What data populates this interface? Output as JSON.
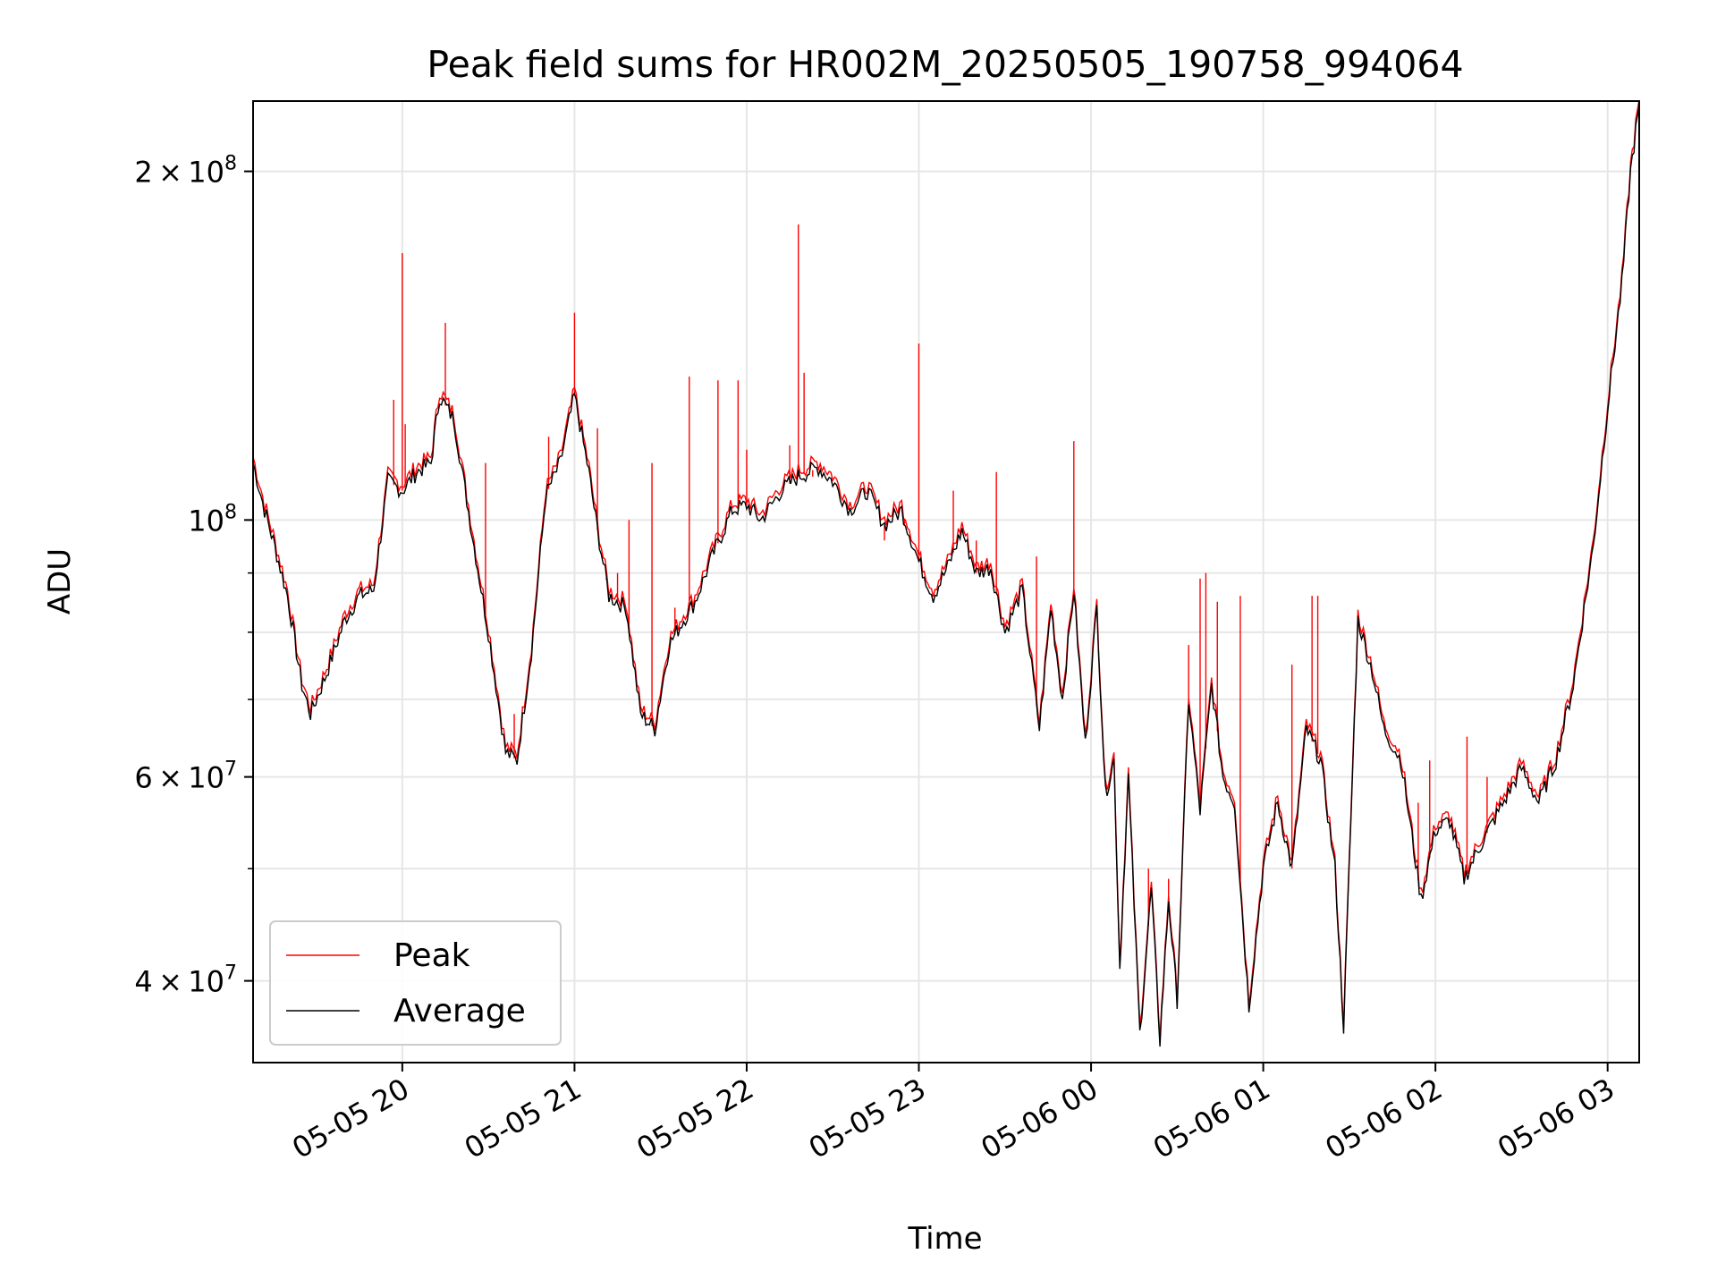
{
  "chart_data": {
    "type": "line",
    "title": "Peak field sums for HR002M_20250505_190758_994064",
    "xlabel": "Time",
    "ylabel": "ADU",
    "yscale": "log",
    "ylim": [
      34000000,
      230000000
    ],
    "xlim": [
      "2025-05-05 19:08",
      "2025-05-06 03:11"
    ],
    "grid": true,
    "legend": "lower-left",
    "x_tick_labels": [
      "05-05 20",
      "05-05 21",
      "05-05 22",
      "05-05 23",
      "05-06 00",
      "05-06 01",
      "05-06 02",
      "05-06 03"
    ],
    "y_tick_labels": [
      {
        "value": 200000000,
        "mantissa": "2",
        "exp": "8"
      },
      {
        "value": 100000000,
        "mantissa": "",
        "exp": "8"
      },
      {
        "value": 60000000,
        "mantissa": "6",
        "exp": "7"
      },
      {
        "value": 40000000,
        "mantissa": "4",
        "exp": "7"
      }
    ],
    "colors": {
      "Peak": "#ff0000",
      "Average": "#000000"
    },
    "series": [
      {
        "name": "Average",
        "points": [
          [
            "2025-05-05 19:08",
            112000000
          ],
          [
            "2025-05-05 19:12",
            102000000
          ],
          [
            "2025-05-05 19:15",
            96000000
          ],
          [
            "2025-05-05 19:20",
            86000000
          ],
          [
            "2025-05-05 19:25",
            72000000
          ],
          [
            "2025-05-05 19:28",
            68000000
          ],
          [
            "2025-05-05 19:33",
            73000000
          ],
          [
            "2025-05-05 19:40",
            82000000
          ],
          [
            "2025-05-05 19:45",
            86000000
          ],
          [
            "2025-05-05 19:50",
            87000000
          ],
          [
            "2025-05-05 19:55",
            108000000
          ],
          [
            "2025-05-05 20:00",
            106000000
          ],
          [
            "2025-05-05 20:05",
            110000000
          ],
          [
            "2025-05-05 20:10",
            112000000
          ],
          [
            "2025-05-05 20:13",
            128000000
          ],
          [
            "2025-05-05 20:18",
            122000000
          ],
          [
            "2025-05-05 20:25",
            95000000
          ],
          [
            "2025-05-05 20:30",
            80000000
          ],
          [
            "2025-05-05 20:36",
            63000000
          ],
          [
            "2025-05-05 20:40",
            62000000
          ],
          [
            "2025-05-05 20:45",
            77000000
          ],
          [
            "2025-05-05 20:50",
            105000000
          ],
          [
            "2025-05-05 20:55",
            112000000
          ],
          [
            "2025-05-05 21:00",
            128000000
          ],
          [
            "2025-05-05 21:05",
            110000000
          ],
          [
            "2025-05-05 21:08",
            98000000
          ],
          [
            "2025-05-05 21:12",
            86000000
          ],
          [
            "2025-05-05 21:18",
            84000000
          ],
          [
            "2025-05-05 21:23",
            68000000
          ],
          [
            "2025-05-05 21:28",
            66000000
          ],
          [
            "2025-05-05 21:33",
            78000000
          ],
          [
            "2025-05-05 21:38",
            82000000
          ],
          [
            "2025-05-05 21:42",
            85000000
          ],
          [
            "2025-05-05 21:48",
            93000000
          ],
          [
            "2025-05-05 21:55",
            102000000
          ],
          [
            "2025-05-05 22:00",
            103000000
          ],
          [
            "2025-05-05 22:05",
            100000000
          ],
          [
            "2025-05-05 22:12",
            106000000
          ],
          [
            "2025-05-05 22:18",
            109000000
          ],
          [
            "2025-05-05 22:25",
            111000000
          ],
          [
            "2025-05-05 22:30",
            108000000
          ],
          [
            "2025-05-05 22:36",
            102000000
          ],
          [
            "2025-05-05 22:42",
            106000000
          ],
          [
            "2025-05-05 22:48",
            99000000
          ],
          [
            "2025-05-05 22:54",
            102000000
          ],
          [
            "2025-05-05 23:00",
            92000000
          ],
          [
            "2025-05-05 23:05",
            86000000
          ],
          [
            "2025-05-05 23:10",
            91000000
          ],
          [
            "2025-05-05 23:15",
            98000000
          ],
          [
            "2025-05-05 23:20",
            90000000
          ],
          [
            "2025-05-05 23:25",
            91000000
          ],
          [
            "2025-05-05 23:30",
            80000000
          ],
          [
            "2025-05-05 23:36",
            87000000
          ],
          [
            "2025-05-05 23:42",
            66000000
          ],
          [
            "2025-05-05 23:46",
            84000000
          ],
          [
            "2025-05-05 23:50",
            70000000
          ],
          [
            "2025-05-05 23:54",
            87000000
          ],
          [
            "2025-05-05 23:58",
            64000000
          ],
          [
            "2025-05-06 00:02",
            84000000
          ],
          [
            "2025-05-06 00:05",
            58000000
          ],
          [
            "2025-05-06 00:08",
            62000000
          ],
          [
            "2025-05-06 00:10",
            41000000
          ],
          [
            "2025-05-06 00:13",
            60000000
          ],
          [
            "2025-05-06 00:17",
            36000000
          ],
          [
            "2025-05-06 00:21",
            48000000
          ],
          [
            "2025-05-06 00:24",
            35500000
          ],
          [
            "2025-05-06 00:27",
            47000000
          ],
          [
            "2025-05-06 00:30",
            38500000
          ],
          [
            "2025-05-06 00:34",
            70000000
          ],
          [
            "2025-05-06 00:38",
            56000000
          ],
          [
            "2025-05-06 00:42",
            72000000
          ],
          [
            "2025-05-06 00:46",
            60000000
          ],
          [
            "2025-05-06 00:50",
            57000000
          ],
          [
            "2025-05-06 00:55",
            38000000
          ],
          [
            "2025-05-06 01:00",
            50000000
          ],
          [
            "2025-05-06 01:05",
            57000000
          ],
          [
            "2025-05-06 01:10",
            50000000
          ],
          [
            "2025-05-06 01:15",
            66000000
          ],
          [
            "2025-05-06 01:20",
            62000000
          ],
          [
            "2025-05-06 01:25",
            50000000
          ],
          [
            "2025-05-06 01:28",
            36500000
          ],
          [
            "2025-05-06 01:33",
            82000000
          ],
          [
            "2025-05-06 01:38",
            74000000
          ],
          [
            "2025-05-06 01:42",
            66000000
          ],
          [
            "2025-05-06 01:48",
            62000000
          ],
          [
            "2025-05-06 01:55",
            47000000
          ],
          [
            "2025-05-06 02:00",
            54000000
          ],
          [
            "2025-05-06 02:05",
            55000000
          ],
          [
            "2025-05-06 02:10",
            49000000
          ],
          [
            "2025-05-06 02:15",
            52000000
          ],
          [
            "2025-05-06 02:22",
            56000000
          ],
          [
            "2025-05-06 02:30",
            61000000
          ],
          [
            "2025-05-06 02:36",
            57000000
          ],
          [
            "2025-05-06 02:42",
            62000000
          ],
          [
            "2025-05-06 02:48",
            72000000
          ],
          [
            "2025-05-06 02:55",
            95000000
          ],
          [
            "2025-05-06 03:00",
            125000000
          ],
          [
            "2025-05-06 03:05",
            160000000
          ],
          [
            "2025-05-06 03:08",
            200000000
          ],
          [
            "2025-05-06 03:11",
            228000000
          ]
        ]
      },
      {
        "name": "Peak",
        "spikes": [
          [
            "2025-05-05 19:57",
            127000000
          ],
          [
            "2025-05-05 20:00",
            170000000
          ],
          [
            "2025-05-05 20:01",
            121000000
          ],
          [
            "2025-05-05 20:15",
            148000000
          ],
          [
            "2025-05-05 20:29",
            112000000
          ],
          [
            "2025-05-05 20:39",
            68000000
          ],
          [
            "2025-05-05 20:51",
            118000000
          ],
          [
            "2025-05-05 21:00",
            151000000
          ],
          [
            "2025-05-05 21:08",
            120000000
          ],
          [
            "2025-05-05 21:11",
            89000000
          ],
          [
            "2025-05-05 21:15",
            90000000
          ],
          [
            "2025-05-05 21:19",
            100000000
          ],
          [
            "2025-05-05 21:27",
            112000000
          ],
          [
            "2025-05-05 21:35",
            84000000
          ],
          [
            "2025-05-05 21:40",
            133000000
          ],
          [
            "2025-05-05 21:50",
            132000000
          ],
          [
            "2025-05-05 21:57",
            132000000
          ],
          [
            "2025-05-05 22:00",
            115000000
          ],
          [
            "2025-05-05 22:15",
            116000000
          ],
          [
            "2025-05-05 22:18",
            180000000
          ],
          [
            "2025-05-05 22:20",
            134000000
          ],
          [
            "2025-05-05 22:23",
            109000000
          ],
          [
            "2025-05-05 22:48",
            96000000
          ],
          [
            "2025-05-05 22:55",
            99000000
          ],
          [
            "2025-05-05 23:00",
            142000000
          ],
          [
            "2025-05-05 23:12",
            106000000
          ],
          [
            "2025-05-05 23:20",
            96000000
          ],
          [
            "2025-05-05 23:27",
            110000000
          ],
          [
            "2025-05-05 23:41",
            93000000
          ],
          [
            "2025-05-05 23:54",
            117000000
          ],
          [
            "2025-05-06 00:20",
            50000000
          ],
          [
            "2025-05-06 00:27",
            49000000
          ],
          [
            "2025-05-06 00:34",
            78000000
          ],
          [
            "2025-05-06 00:38",
            89000000
          ],
          [
            "2025-05-06 00:40",
            90000000
          ],
          [
            "2025-05-06 00:44",
            85000000
          ],
          [
            "2025-05-06 00:52",
            86000000
          ],
          [
            "2025-05-06 01:10",
            75000000
          ],
          [
            "2025-05-06 01:17",
            86000000
          ],
          [
            "2025-05-06 01:19",
            86000000
          ],
          [
            "2025-05-06 01:54",
            57000000
          ],
          [
            "2025-05-06 01:58",
            62000000
          ],
          [
            "2025-05-06 02:11",
            65000000
          ],
          [
            "2025-05-06 02:18",
            60000000
          ]
        ]
      }
    ]
  }
}
